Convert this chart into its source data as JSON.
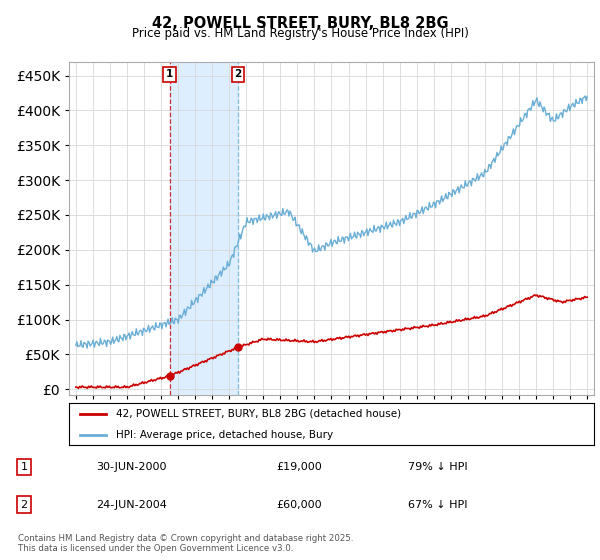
{
  "title": "42, POWELL STREET, BURY, BL8 2BG",
  "subtitle": "Price paid vs. HM Land Registry's House Price Index (HPI)",
  "legend_line1": "42, POWELL STREET, BURY, BL8 2BG (detached house)",
  "legend_line2": "HPI: Average price, detached house, Bury",
  "red_color": "#cc0000",
  "blue_color": "#6aaed6",
  "shade_color": "#dceeff",
  "footnote": "Contains HM Land Registry data © Crown copyright and database right 2025.\nThis data is licensed under the Open Government Licence v3.0.",
  "purchase1_date": "30-JUN-2000",
  "purchase1_price": "£19,000",
  "purchase1_hpi": "79% ↓ HPI",
  "purchase2_date": "24-JUN-2004",
  "purchase2_price": "£60,000",
  "purchase2_hpi": "67% ↓ HPI",
  "ylim_max": 470000,
  "yticks": [
    0,
    50000,
    100000,
    150000,
    200000,
    250000,
    300000,
    350000,
    400000,
    450000
  ],
  "year_start": 1995,
  "year_end": 2025,
  "purchase1_year": 2000.5,
  "purchase2_year": 2004.5,
  "purchase1_val": 19000,
  "purchase2_val": 60000
}
